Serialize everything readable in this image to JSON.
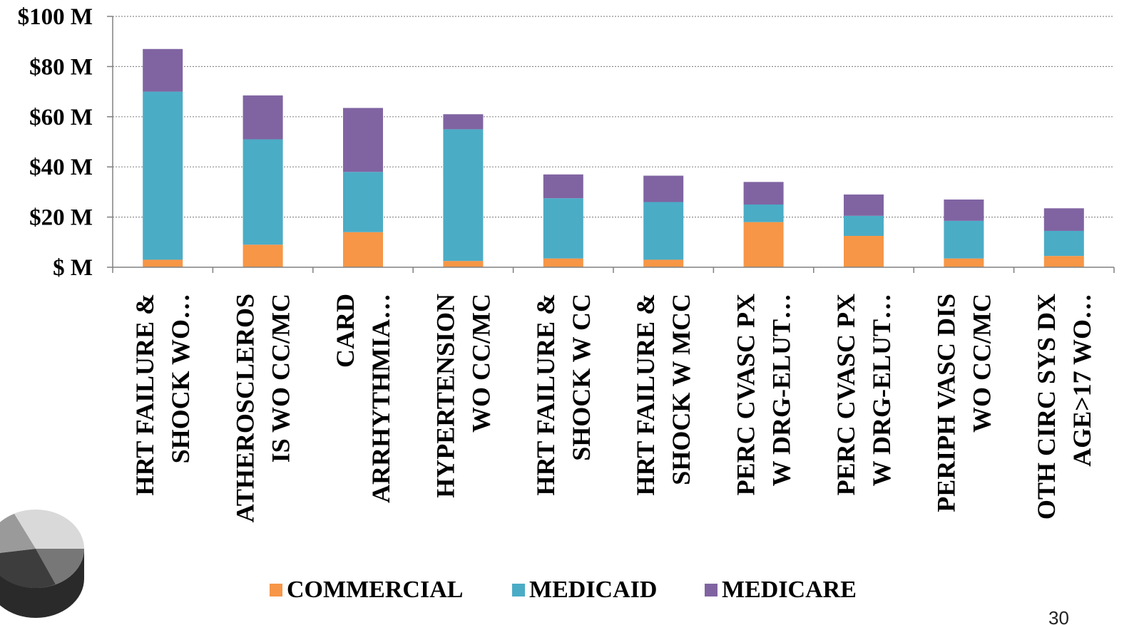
{
  "page": {
    "number": "30"
  },
  "colors": {
    "commercial": "#F79646",
    "medicaid": "#4BACC6",
    "medicare": "#8064A2",
    "gridline": "#8c8c8c",
    "axis": "#808080"
  },
  "decoration": {
    "icon": "pie-chart-icon"
  },
  "chart_data": {
    "type": "bar",
    "stacked": true,
    "title": "",
    "xlabel": "",
    "ylabel": "",
    "ylim": [
      0,
      100
    ],
    "y_ticks": [
      {
        "value": 0,
        "label": "$ M"
      },
      {
        "value": 20,
        "label": "$20 M"
      },
      {
        "value": 40,
        "label": "$40 M"
      },
      {
        "value": 60,
        "label": "$60 M"
      },
      {
        "value": 80,
        "label": "$80 M"
      },
      {
        "value": 100,
        "label": "$100 M"
      }
    ],
    "grid": true,
    "legend_position": "bottom",
    "categories": [
      [
        "HRT FAILURE &",
        "SHOCK WO…"
      ],
      [
        "ATHEROSCLEROS",
        "IS WO CC/MC"
      ],
      [
        "CARD",
        "ARRHYTHMIA…"
      ],
      [
        "HYPERTENSION",
        "WO CC/MC"
      ],
      [
        "HRT FAILURE &",
        "SHOCK W CC"
      ],
      [
        "HRT FAILURE &",
        "SHOCK W MCC"
      ],
      [
        "PERC CVASC PX",
        "W DRG-ELUT…"
      ],
      [
        "PERC CVASC PX",
        "W DRG-ELUT…"
      ],
      [
        "PERIPH VASC DIS",
        "WO CC/MC"
      ],
      [
        "OTH CIRC SYS DX",
        "AGE>17 WO…"
      ]
    ],
    "series": [
      {
        "name": "COMMERCIAL",
        "color": "#F79646",
        "values": [
          3,
          9,
          14,
          2.5,
          3.5,
          3,
          18,
          12.5,
          3.5,
          4.5
        ]
      },
      {
        "name": "MEDICAID",
        "color": "#4BACC6",
        "values": [
          67,
          42,
          24,
          52.5,
          24,
          23,
          7,
          8,
          15,
          10
        ]
      },
      {
        "name": "MEDICARE",
        "color": "#8064A2",
        "values": [
          17,
          17.5,
          25.5,
          6,
          9.5,
          10.5,
          9,
          8.5,
          8.5,
          9
        ]
      }
    ]
  }
}
